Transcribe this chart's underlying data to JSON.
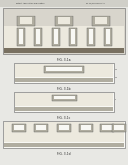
{
  "bg": "#e8e8e4",
  "header_bg": "#d0cfc8",
  "white": "#f8f8f4",
  "light_gray": "#d8d5cc",
  "med_gray": "#b0ada0",
  "dark_gray": "#787060",
  "very_dark": "#504840",
  "border": "#606060",
  "inner_light": "#ece9de",
  "fig_labels": [
    "FIG. 3-1a",
    "FIG. 3-1b",
    "FIG. 3-1c",
    "FIG. 3-1d"
  ]
}
